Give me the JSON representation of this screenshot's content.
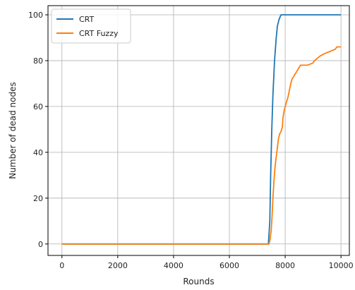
{
  "chart_data": {
    "type": "line",
    "title": "",
    "xlabel": "Rounds",
    "ylabel": "Number of dead nodes",
    "xlim": [
      -500,
      10300
    ],
    "ylim": [
      -5,
      104
    ],
    "xticks": [
      "0",
      "2000",
      "4000",
      "6000",
      "8000",
      "10000"
    ],
    "yticks": [
      "0",
      "20",
      "40",
      "60",
      "80",
      "100"
    ],
    "grid": true,
    "legend_position": "top-left",
    "series": [
      {
        "name": "CRT",
        "color": "#1f77b4",
        "points": [
          [
            0,
            0
          ],
          [
            7400,
            0
          ],
          [
            7450,
            10
          ],
          [
            7480,
            30
          ],
          [
            7520,
            50
          ],
          [
            7560,
            65
          ],
          [
            7620,
            80
          ],
          [
            7680,
            90
          ],
          [
            7720,
            95
          ],
          [
            7780,
            98
          ],
          [
            7850,
            100
          ],
          [
            10000,
            100
          ]
        ]
      },
      {
        "name": "CRT Fuzzy",
        "color": "#ff7f0e",
        "points": [
          [
            0,
            0
          ],
          [
            7420,
            0
          ],
          [
            7460,
            2
          ],
          [
            7500,
            6
          ],
          [
            7530,
            12
          ],
          [
            7560,
            20
          ],
          [
            7600,
            28
          ],
          [
            7640,
            34
          ],
          [
            7680,
            38
          ],
          [
            7720,
            42
          ],
          [
            7760,
            46
          ],
          [
            7800,
            48
          ],
          [
            7850,
            49
          ],
          [
            7900,
            51
          ],
          [
            7920,
            55
          ],
          [
            7960,
            58
          ],
          [
            8000,
            60
          ],
          [
            8050,
            62
          ],
          [
            8100,
            64
          ],
          [
            8150,
            67
          ],
          [
            8200,
            70
          ],
          [
            8250,
            72
          ],
          [
            8300,
            73
          ],
          [
            8350,
            74
          ],
          [
            8400,
            75
          ],
          [
            8450,
            76
          ],
          [
            8500,
            77
          ],
          [
            8550,
            78
          ],
          [
            8800,
            78
          ],
          [
            9000,
            79
          ],
          [
            9050,
            80
          ],
          [
            9150,
            81
          ],
          [
            9250,
            82
          ],
          [
            9400,
            83
          ],
          [
            9600,
            84
          ],
          [
            9800,
            85
          ],
          [
            9850,
            86
          ],
          [
            10000,
            86
          ]
        ]
      }
    ]
  }
}
